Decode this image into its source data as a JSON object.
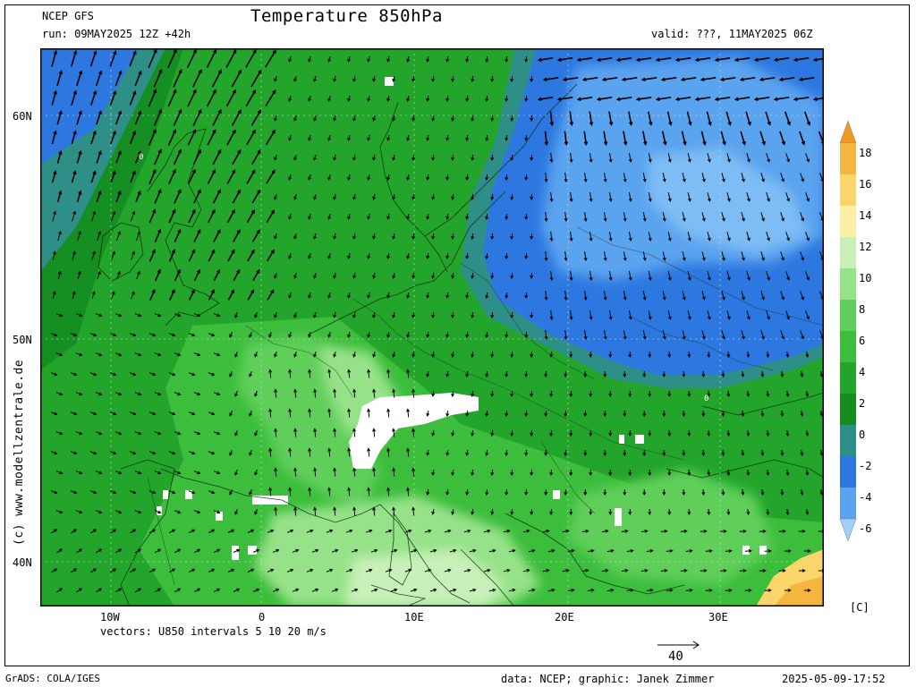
{
  "header": {
    "model": "NCEP GFS",
    "run": "run: 09MAY2025 12Z +42h",
    "title": "Temperature 850hPa",
    "valid": "valid: ???, 11MAY2025 06Z"
  },
  "axes": {
    "lat_labels": [
      "60N",
      "50N",
      "40N"
    ],
    "lon_labels": [
      "10W",
      "0",
      "10E",
      "20E",
      "30E"
    ]
  },
  "vectors_note": "vectors: U850 intervals 5 10 20 m/s",
  "ref_vector": "40",
  "colorbar": {
    "labels": [
      "18",
      "16",
      "14",
      "12",
      "10",
      "8",
      "6",
      "4",
      "2",
      "0",
      "-2",
      "-4",
      "-6"
    ],
    "unit": "[C]",
    "colors": [
      "#f09a26",
      "#f5b640",
      "#fad66a",
      "#fcf0a6",
      "#c8f0b8",
      "#96e288",
      "#5ecf5a",
      "#3cbd3c",
      "#22a52a",
      "#148c1e",
      "#2e8f88",
      "#2d78e0",
      "#5aa3ef",
      "#9fd0f7"
    ]
  },
  "map": {
    "contour_labels": [
      "0",
      "0"
    ],
    "colors": {
      "ocean_warm": "#1f9c2e",
      "land_warm": "#3cbd3c",
      "light": "#7fdc75",
      "lighter": "#b8eeb0",
      "cold": "#2d78e0",
      "colder": "#5aa3ef",
      "teal": "#2e8f88"
    }
  },
  "watermark": "(c) www.modellzentrale.de",
  "footer": {
    "left": "GrADS: COLA/IGES",
    "center": "data: NCEP; graphic: Janek Zimmer",
    "right": "2025-05-09-17:52"
  }
}
